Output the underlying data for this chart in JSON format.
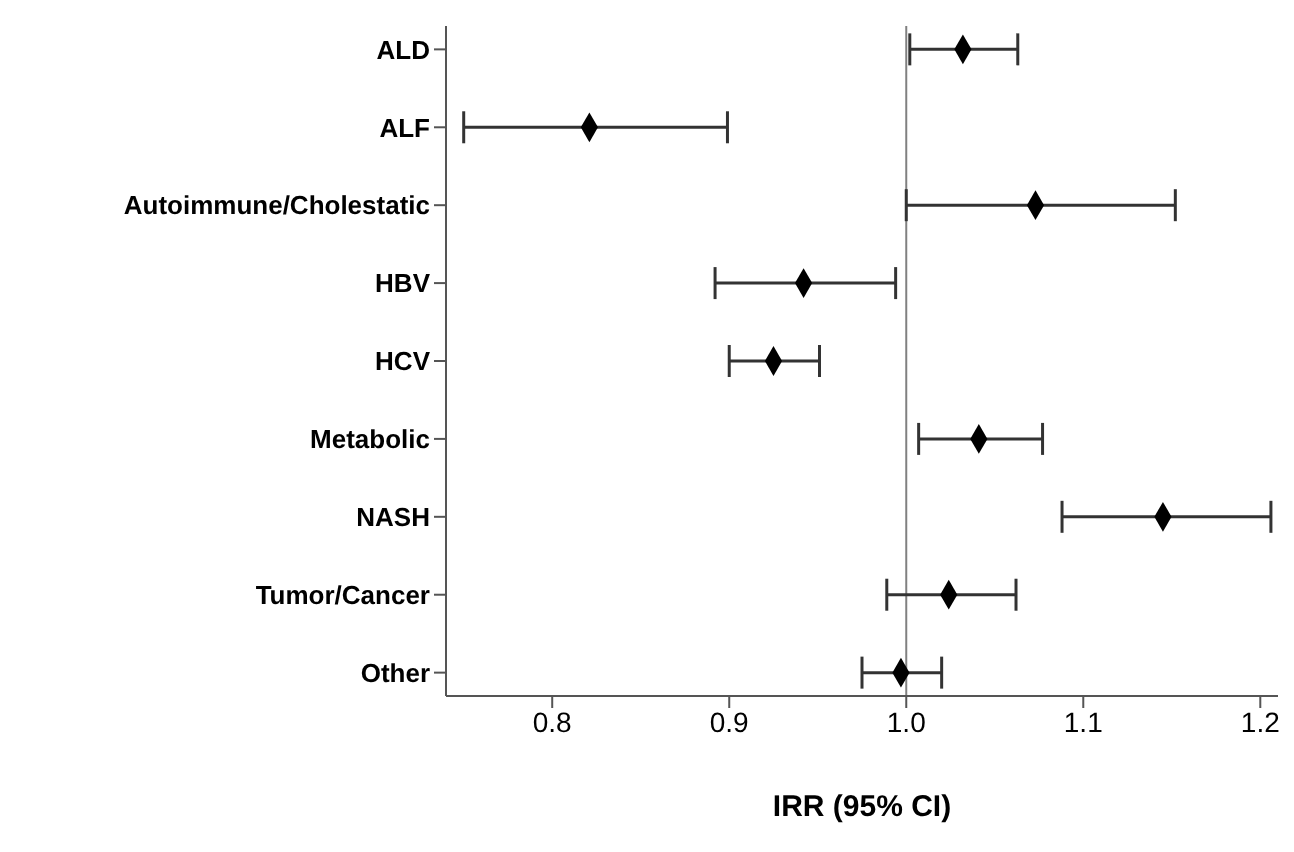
{
  "chart_data": {
    "type": "scatter",
    "orientation": "horizontal",
    "xlabel": "IRR (95% CI)",
    "categories": [
      "ALD",
      "ALF",
      "Autoimmune/Cholestatic",
      "HBV",
      "HCV",
      "Metabolic",
      "NASH",
      "Tumor/Cancer",
      "Other"
    ],
    "values": [
      1.032,
      0.821,
      1.073,
      0.942,
      0.925,
      1.041,
      1.145,
      1.024,
      0.997
    ],
    "errors": [
      [
        1.002,
        1.063
      ],
      [
        0.75,
        0.899
      ],
      [
        1.0,
        1.152
      ],
      [
        0.892,
        0.994
      ],
      [
        0.9,
        0.951
      ],
      [
        1.007,
        1.077
      ],
      [
        1.088,
        1.206
      ],
      [
        0.989,
        1.062
      ],
      [
        0.975,
        1.02
      ]
    ],
    "color": "#000000",
    "marker": "diamond",
    "xlim": [
      0.74,
      1.21
    ],
    "xticks": [
      {
        "value": 0.8,
        "label": "0.8"
      },
      {
        "value": 0.9,
        "label": "0.9"
      },
      {
        "value": 1.0,
        "label": "1.0"
      },
      {
        "value": 1.1,
        "label": "1.1"
      },
      {
        "value": 1.2,
        "label": "1.2"
      }
    ],
    "ref_lines": [
      {
        "axis": "x",
        "value": 1.0,
        "color": "#808080"
      }
    ],
    "grid": false
  }
}
